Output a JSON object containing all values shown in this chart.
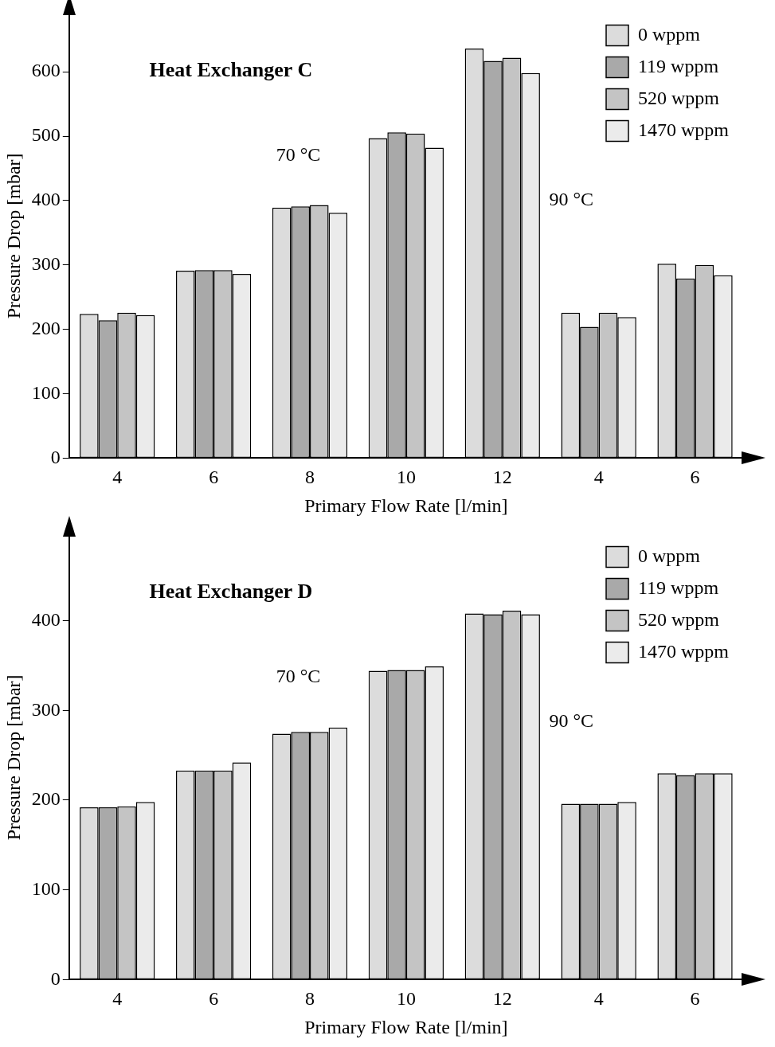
{
  "chart_data": [
    {
      "type": "bar",
      "title": "Heat Exchanger C",
      "xlabel": "Primary Flow Rate [l/min]",
      "ylabel": "Pressure Drop [mbar]",
      "categories": [
        "4",
        "6",
        "8",
        "10",
        "12",
        "4",
        "6"
      ],
      "series": [
        {
          "name": "0 wppm",
          "color": "#dcdcdc",
          "values": [
            224,
            291,
            389,
            497,
            636,
            226,
            302
          ]
        },
        {
          "name": "119 wppm",
          "color": "#a9a9a9",
          "values": [
            214,
            292,
            391,
            506,
            617,
            204,
            279
          ]
        },
        {
          "name": "520 wppm",
          "color": "#c4c4c4",
          "values": [
            226,
            292,
            393,
            504,
            622,
            226,
            300
          ]
        },
        {
          "name": "1470 wppm",
          "color": "#ebebeb",
          "values": [
            222,
            286,
            381,
            482,
            598,
            219,
            284
          ]
        }
      ],
      "annotations": [
        "70 °C",
        "90 °C"
      ],
      "ylim": [
        0,
        690
      ],
      "yticks": [
        0,
        100,
        200,
        300,
        400,
        500,
        600
      ],
      "grid": false,
      "legend": "top right"
    },
    {
      "type": "bar",
      "title": "Heat Exchanger D",
      "xlabel": "Primary Flow Rate [l/min]",
      "ylabel": "Pressure Drop [mbar]",
      "categories": [
        "4",
        "6",
        "8",
        "10",
        "12",
        "4",
        "6"
      ],
      "series": [
        {
          "name": "0 wppm",
          "color": "#dcdcdc",
          "values": [
            192,
            233,
            274,
            344,
            408,
            196,
            230
          ]
        },
        {
          "name": "119 wppm",
          "color": "#a9a9a9",
          "values": [
            192,
            233,
            276,
            345,
            407,
            196,
            228
          ]
        },
        {
          "name": "520 wppm",
          "color": "#c4c4c4",
          "values": [
            193,
            233,
            276,
            345,
            411,
            196,
            230
          ]
        },
        {
          "name": "1470 wppm",
          "color": "#ebebeb",
          "values": [
            198,
            242,
            281,
            349,
            407,
            198,
            230
          ]
        }
      ],
      "annotations": [
        "70 °C",
        "90 °C"
      ],
      "ylim": [
        0,
        495
      ],
      "yticks": [
        0,
        100,
        200,
        300,
        400
      ],
      "grid": false,
      "legend": "top right"
    }
  ]
}
